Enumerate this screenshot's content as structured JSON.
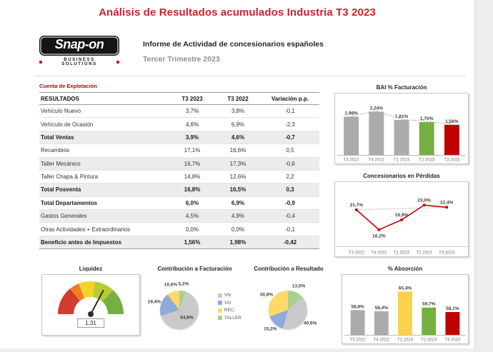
{
  "header": {
    "title": "Análisis de Resultados acumulados Industria T3 2023",
    "subtitle": "Informe de Actividad de concesionarios españoles",
    "period": "Tercer Trimestre 2023"
  },
  "logo": {
    "brand": "Snap-on",
    "subtitle": "BUSINESS SOLUTIONS"
  },
  "table": {
    "caption": "Cuenta de Explotación",
    "columns": [
      "RESULTADOS",
      "T3 2023",
      "T3 2022",
      "Variación p.p."
    ],
    "rows": [
      {
        "label": "Vehículo Nuevo",
        "t3_2023": "3,7%",
        "t3_2022": "3,8%",
        "var_pp": "-0,1",
        "bold": false,
        "shaded": false
      },
      {
        "label": "Vehículo de Ocasión",
        "t3_2023": "4,6%",
        "t3_2022": "6,9%",
        "var_pp": "-2,3",
        "bold": false,
        "shaded": false
      },
      {
        "label": "Total Ventas",
        "t3_2023": "3,9%",
        "t3_2022": "4,6%",
        "var_pp": "-0,7",
        "bold": true,
        "shaded": true
      },
      {
        "label": "Recambios",
        "t3_2023": "17,1%",
        "t3_2022": "16,6%",
        "var_pp": "0,5",
        "bold": false,
        "shaded": false
      },
      {
        "label": "Taller Mecánico",
        "t3_2023": "16,7%",
        "t3_2022": "17,3%",
        "var_pp": "-0,6",
        "bold": false,
        "shaded": true
      },
      {
        "label": "Taller Chapa & Pintura",
        "t3_2023": "14,8%",
        "t3_2022": "12,6%",
        "var_pp": "2,2",
        "bold": false,
        "shaded": false
      },
      {
        "label": "Total Posventa",
        "t3_2023": "16,8%",
        "t3_2022": "16,5%",
        "var_pp": "0,3",
        "bold": true,
        "shaded": true
      },
      {
        "label": "Total Departamentos",
        "t3_2023": "6,0%",
        "t3_2022": "6,9%",
        "var_pp": "-0,9",
        "bold": true,
        "shaded": false
      },
      {
        "label": "Gastos Generales",
        "t3_2023": "4,5%",
        "t3_2022": "4,9%",
        "var_pp": "-0,4",
        "bold": false,
        "shaded": true
      },
      {
        "label": "Otras Actividades + Extraordinarios",
        "t3_2023": "0,0%",
        "t3_2022": "0,0%",
        "var_pp": "-0,1",
        "bold": false,
        "shaded": false
      },
      {
        "label": "Beneficio antes de Impuestos",
        "t3_2023": "1,56%",
        "t3_2022": "1,98%",
        "var_pp": "-0,42",
        "bold": true,
        "shaded": true
      }
    ]
  },
  "chart_data": [
    {
      "type": "bar",
      "title": "BAI % Facturación",
      "categories": [
        "T3 2022",
        "T4 2022",
        "T1 2023",
        "T2 2023",
        "T3 2023"
      ],
      "values": [
        1.98,
        2.24,
        1.81,
        1.7,
        1.56
      ],
      "value_labels": [
        "1,98%",
        "2,24%",
        "1,81%",
        "1,70%",
        "1,56%"
      ],
      "bar_colors": [
        "#ababab",
        "#ababab",
        "#ababab",
        "#76b041",
        "#c00000"
      ],
      "ylim": [
        0,
        2.7
      ],
      "trendline": true
    },
    {
      "type": "line",
      "title": "Concesionarios en Pérdidas",
      "categories": [
        "T3 2022",
        "T4 2022",
        "T1 2023",
        "T2 2023",
        "T3 2023"
      ],
      "values": [
        21.7,
        16.2,
        18.9,
        23.0,
        22.4
      ],
      "value_labels": [
        "21,7%",
        "16,2%",
        "18,9%",
        "23,0%",
        "22,4%"
      ],
      "line_color": "#c00000",
      "ylim": [
        12,
        27
      ],
      "trendline": true
    },
    {
      "type": "gauge",
      "title": "Liquidez",
      "value": 1.31,
      "label": "1,31",
      "range": [
        0,
        2
      ],
      "segments": [
        {
          "color": "#d23b2f",
          "frac": 0.28
        },
        {
          "color": "#ef7d23",
          "frac": 0.1
        },
        {
          "color": "#f6d32b",
          "frac": 0.16
        },
        {
          "color": "#b5cc34",
          "frac": 0.2
        },
        {
          "color": "#74b043",
          "frac": 0.26
        }
      ]
    },
    {
      "type": "pie",
      "title": "Contribución a Facturación",
      "slices": [
        {
          "label": "TALLER",
          "value": 5.2,
          "text": "5,2%",
          "color": "#a9d18e"
        },
        {
          "label": "VN",
          "value": 64.8,
          "text": "64,8%",
          "color": "#c9c9c9"
        },
        {
          "label": "VO",
          "value": 19.4,
          "text": "19,4%",
          "color": "#8eaadb"
        },
        {
          "label": "REC.",
          "value": 10.6,
          "text": "10,6%",
          "color": "#ffd966"
        }
      ],
      "legend": [
        {
          "label": "VN",
          "color": "#c9c9c9"
        },
        {
          "label": "VO",
          "color": "#8eaadb"
        },
        {
          "label": "REC.",
          "color": "#ffd966"
        },
        {
          "label": "TALLER",
          "color": "#a9d18e"
        }
      ]
    },
    {
      "type": "pie",
      "title": "Contribución a Resultado",
      "slices": [
        {
          "label": "TALLER",
          "value": 13.5,
          "text": "13,5%",
          "color": "#a9d18e"
        },
        {
          "label": "VN",
          "value": 40.6,
          "text": "40,6%",
          "color": "#c9c9c9"
        },
        {
          "label": "VO",
          "value": 15.2,
          "text": "15,2%",
          "color": "#8eaadb"
        },
        {
          "label": "REC.",
          "value": 30.8,
          "text": "30,8%",
          "color": "#ffd966"
        }
      ]
    },
    {
      "type": "bar",
      "title": "% Absorción",
      "categories": [
        "T3 2022",
        "T4 2022",
        "T1 2023",
        "T2 2023",
        "T3 2023"
      ],
      "values": [
        58.8,
        58.4,
        65.4,
        59.7,
        58.1
      ],
      "value_labels": [
        "58,8%",
        "58,4%",
        "65,4%",
        "59,7%",
        "58,1%"
      ],
      "bar_colors": [
        "#ababab",
        "#ababab",
        "#ffd24d",
        "#76b041",
        "#c00000"
      ],
      "ylim": [
        50,
        68
      ],
      "trendline": false
    }
  ]
}
